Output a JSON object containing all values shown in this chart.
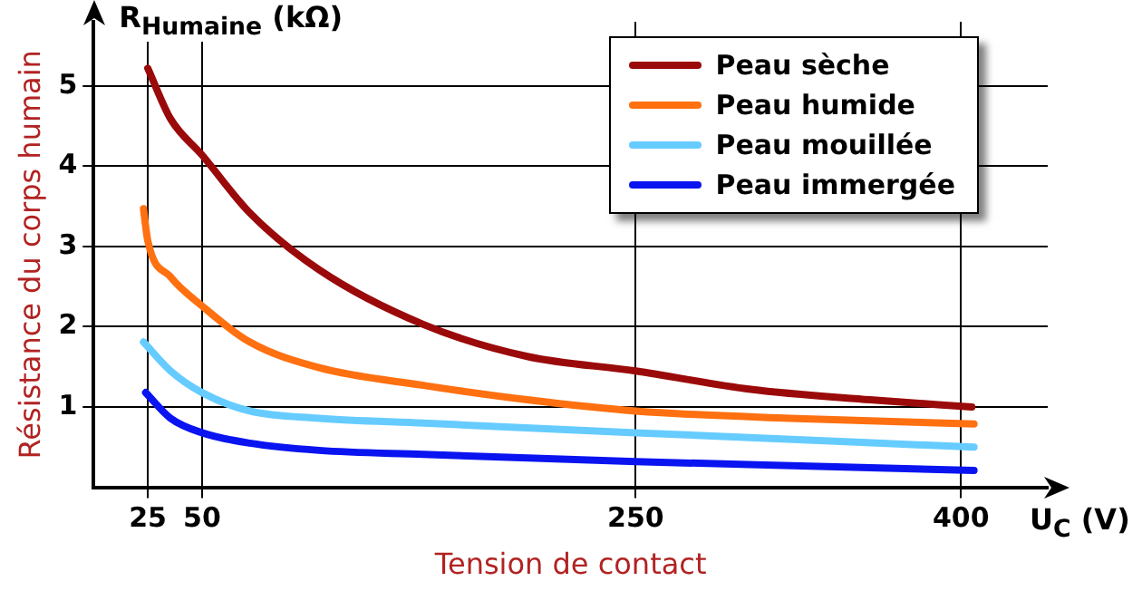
{
  "chart_data": {
    "type": "line",
    "xlabel": "Tension de contact",
    "ylabel": "Résistance du corps humain",
    "annotations": [
      "R$_{Humaine}$ (kΩ)",
      "U$_{C}$ (V)"
    ],
    "xlim": [
      0,
      440
    ],
    "xticks": [
      25,
      50,
      250,
      400
    ],
    "ylim": [
      0,
      5.8
    ],
    "yticks": [
      1,
      2,
      3,
      4,
      5
    ],
    "grid": true,
    "legend": "top right",
    "marker": "none",
    "line_style": "solid",
    "series": [
      {
        "name": "Peau sèche",
        "color": "#9b0a0a",
        "x": [
          25,
          35.5,
          50,
          72,
          104,
          152,
          200,
          250,
          303,
          358,
          405
        ],
        "values": [
          5.22,
          4.59,
          4.14,
          3.42,
          2.71,
          2.03,
          1.63,
          1.45,
          1.22,
          1.09,
          1.0
        ]
      },
      {
        "name": "Peau humide",
        "color": "#ff7010",
        "x": [
          23,
          25,
          35.5,
          50,
          72,
          104,
          152,
          200,
          250,
          321,
          406
        ],
        "values": [
          3.47,
          3.07,
          2.62,
          2.26,
          1.81,
          1.49,
          1.27,
          1.09,
          0.95,
          0.86,
          0.79
        ]
      },
      {
        "name": "Peau mouillée",
        "color": "#66ccff",
        "x": [
          23,
          35.5,
          50,
          72,
          104,
          152,
          250,
          406
        ],
        "values": [
          1.81,
          1.45,
          1.18,
          0.95,
          0.86,
          0.8,
          0.68,
          0.5
        ]
      },
      {
        "name": "Peau immergée",
        "color": "#0a14f0",
        "x": [
          24,
          35.5,
          50,
          72,
          104,
          152,
          250,
          406
        ],
        "values": [
          1.18,
          0.86,
          0.68,
          0.55,
          0.46,
          0.41,
          0.32,
          0.21
        ]
      }
    ]
  }
}
